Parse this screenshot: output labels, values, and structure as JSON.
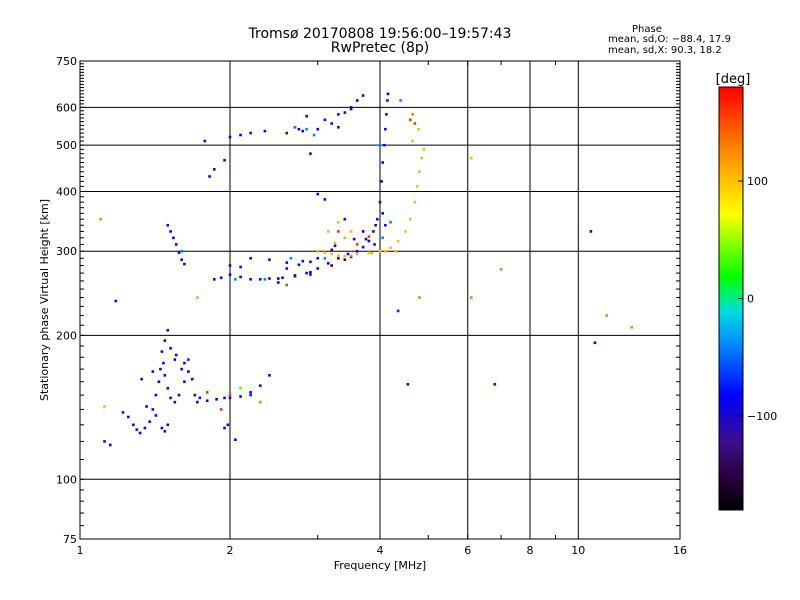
{
  "header": {
    "title_line1": "Tromsø 20170808 19:56:00–19:57:43",
    "title_line2": "RwPretec (8p)",
    "phase_title": "Phase",
    "phase_o": "mean, sd,O: −88.4, 17.9",
    "phase_x": "mean, sd,X:  90.3, 18.2"
  },
  "chart_data": {
    "type": "scatter",
    "xlabel": "Frequency [MHz]",
    "ylabel": "Stationary phase Virtual Height [km]",
    "x_scale": "log",
    "y_scale": "log",
    "xlim": [
      1,
      16
    ],
    "ylim": [
      75,
      750
    ],
    "grid": true,
    "x_ticks": [
      {
        "v": 1,
        "label": "1"
      },
      {
        "v": 2,
        "label": "2"
      },
      {
        "v": 4,
        "label": "4"
      },
      {
        "v": 6,
        "label": "6"
      },
      {
        "v": 8,
        "label": "8"
      },
      {
        "v": 10,
        "label": "10"
      },
      {
        "v": 16,
        "label": "16"
      }
    ],
    "y_ticks": [
      {
        "v": 75,
        "label": "75"
      },
      {
        "v": 100,
        "label": "100"
      },
      {
        "v": 200,
        "label": "200"
      },
      {
        "v": 300,
        "label": "300"
      },
      {
        "v": 400,
        "label": "400"
      },
      {
        "v": 500,
        "label": "500"
      },
      {
        "v": 600,
        "label": "600"
      },
      {
        "v": 750,
        "label": "750"
      }
    ],
    "colorbar": {
      "label": "[deg]",
      "range": [
        -180,
        180
      ],
      "ticks": [
        {
          "v": 100,
          "label": "100"
        },
        {
          "v": 0,
          "label": "0"
        },
        {
          "v": -100,
          "label": "−100"
        }
      ]
    },
    "series": [
      {
        "phase": -90,
        "points": [
          [
            1.12,
            120
          ],
          [
            1.15,
            118
          ],
          [
            1.22,
            138
          ],
          [
            1.25,
            135
          ],
          [
            1.28,
            130
          ],
          [
            1.3,
            127
          ],
          [
            1.32,
            125
          ],
          [
            1.35,
            128
          ],
          [
            1.38,
            132
          ],
          [
            1.4,
            140
          ],
          [
            1.42,
            150
          ],
          [
            1.44,
            160
          ],
          [
            1.45,
            170
          ],
          [
            1.47,
            175
          ],
          [
            1.48,
            165
          ],
          [
            1.5,
            155
          ],
          [
            1.52,
            148
          ],
          [
            1.55,
            145
          ],
          [
            1.58,
            150
          ],
          [
            1.62,
            160
          ],
          [
            1.65,
            168
          ],
          [
            1.68,
            162
          ],
          [
            1.7,
            150
          ],
          [
            1.72,
            145
          ],
          [
            1.74,
            148
          ],
          [
            1.8,
            146
          ],
          [
            1.88,
            147
          ],
          [
            1.95,
            148
          ],
          [
            2.0,
            148
          ],
          [
            2.1,
            149
          ],
          [
            2.2,
            152
          ],
          [
            2.3,
            157
          ],
          [
            2.4,
            165
          ],
          [
            1.46,
            185
          ],
          [
            1.48,
            195
          ],
          [
            1.5,
            205
          ],
          [
            1.52,
            188
          ],
          [
            1.55,
            178
          ],
          [
            1.6,
            170
          ],
          [
            1.46,
            128
          ],
          [
            1.48,
            126
          ],
          [
            1.5,
            130
          ],
          [
            1.42,
            136
          ],
          [
            1.36,
            142
          ],
          [
            1.33,
            162
          ],
          [
            1.4,
            168
          ],
          [
            1.56,
            182
          ],
          [
            1.62,
            175
          ],
          [
            1.18,
            236
          ],
          [
            1.5,
            340
          ],
          [
            1.52,
            330
          ],
          [
            1.54,
            320
          ],
          [
            1.56,
            310
          ],
          [
            1.58,
            298
          ],
          [
            1.6,
            288
          ],
          [
            1.62,
            282
          ],
          [
            1.86,
            262
          ],
          [
            1.92,
            264
          ],
          [
            2.0,
            268
          ],
          [
            2.1,
            265
          ],
          [
            2.2,
            262
          ],
          [
            2.3,
            262
          ],
          [
            2.4,
            263
          ],
          [
            2.55,
            264
          ],
          [
            2.7,
            266
          ],
          [
            2.85,
            270
          ],
          [
            3.0,
            276
          ],
          [
            3.15,
            283
          ],
          [
            3.3,
            290
          ],
          [
            3.45,
            296
          ],
          [
            3.6,
            300
          ],
          [
            3.7,
            306
          ],
          [
            3.8,
            315
          ],
          [
            3.88,
            330
          ],
          [
            3.95,
            350
          ],
          [
            4.0,
            380
          ],
          [
            4.03,
            420
          ],
          [
            4.05,
            460
          ],
          [
            4.08,
            500
          ],
          [
            4.1,
            540
          ],
          [
            4.12,
            580
          ],
          [
            4.14,
            620
          ],
          [
            4.15,
            640
          ],
          [
            2.2,
            290
          ],
          [
            2.4,
            288
          ],
          [
            2.6,
            284
          ],
          [
            2.8,
            286
          ],
          [
            2.9,
            285
          ],
          [
            3.0,
            290
          ],
          [
            3.2,
            302
          ],
          [
            2.0,
            280
          ],
          [
            2.1,
            278
          ],
          [
            1.82,
            430
          ],
          [
            1.86,
            445
          ],
          [
            1.95,
            465
          ],
          [
            2.0,
            520
          ],
          [
            2.1,
            525
          ],
          [
            2.2,
            530
          ],
          [
            2.35,
            535
          ],
          [
            2.6,
            530
          ],
          [
            2.8,
            535
          ],
          [
            3.0,
            540
          ],
          [
            3.2,
            555
          ],
          [
            3.4,
            585
          ],
          [
            3.6,
            620
          ],
          [
            3.7,
            635
          ],
          [
            2.7,
            545
          ],
          [
            2.85,
            575
          ],
          [
            3.1,
            565
          ],
          [
            3.3,
            580
          ],
          [
            3.5,
            600
          ],
          [
            4.05,
            360
          ],
          [
            4.1,
            340
          ],
          [
            3.9,
            310
          ],
          [
            3.7,
            330
          ],
          [
            3.4,
            350
          ],
          [
            2.9,
            480
          ],
          [
            3.1,
            385
          ],
          [
            3.0,
            395
          ],
          [
            1.78,
            510
          ],
          [
            4.55,
            158
          ],
          [
            6.8,
            158
          ],
          [
            10.6,
            330
          ],
          [
            10.8,
            193
          ],
          [
            1.95,
            128
          ],
          [
            1.98,
            130
          ],
          [
            2.05,
            121
          ],
          [
            2.5,
            258
          ],
          [
            2.6,
            276
          ],
          [
            2.75,
            281
          ],
          [
            3.55,
            318
          ],
          [
            3.25,
            308
          ]
        ]
      },
      {
        "phase": -140,
        "points": [
          [
            2.5,
            263
          ],
          [
            2.7,
            267
          ],
          [
            2.9,
            271
          ],
          [
            3.2,
            280
          ],
          [
            3.4,
            288
          ],
          [
            3.5,
            292
          ],
          [
            3.75,
            318
          ],
          [
            3.92,
            340
          ],
          [
            3.3,
            545
          ],
          [
            3.5,
            595
          ],
          [
            2.75,
            540
          ]
        ]
      },
      {
        "phase": -40,
        "points": [
          [
            2.7,
            545
          ],
          [
            2.85,
            540
          ],
          [
            2.95,
            525
          ],
          [
            2.05,
            262
          ],
          [
            2.35,
            262
          ],
          [
            4.0,
            500
          ],
          [
            3.1,
            290
          ],
          [
            2.65,
            290
          ],
          [
            1.6,
            300
          ],
          [
            4.05,
            320
          ],
          [
            4.2,
            345
          ],
          [
            4.4,
            620
          ]
        ]
      },
      {
        "phase": 105,
        "points": [
          [
            3.0,
            300
          ],
          [
            3.1,
            298
          ],
          [
            3.2,
            296
          ],
          [
            3.3,
            294
          ],
          [
            3.4,
            293
          ],
          [
            3.5,
            294
          ],
          [
            3.6,
            296
          ],
          [
            3.8,
            298
          ],
          [
            4.0,
            300
          ],
          [
            4.2,
            305
          ],
          [
            4.35,
            315
          ],
          [
            4.5,
            330
          ],
          [
            4.6,
            350
          ],
          [
            4.7,
            380
          ],
          [
            4.75,
            410
          ],
          [
            4.8,
            440
          ],
          [
            4.85,
            470
          ],
          [
            4.9,
            490
          ],
          [
            3.15,
            330
          ],
          [
            3.3,
            345
          ],
          [
            3.4,
            320
          ],
          [
            3.25,
            312
          ],
          [
            3.5,
            330
          ],
          [
            4.3,
            300
          ],
          [
            4.1,
            300
          ],
          [
            3.85,
            297
          ],
          [
            4.65,
            510
          ],
          [
            4.78,
            540
          ],
          [
            1.12,
            142
          ],
          [
            6.1,
            470
          ]
        ]
      },
      {
        "phase": 160,
        "points": [
          [
            4.6,
            565
          ],
          [
            4.7,
            555
          ],
          [
            3.6,
            310
          ],
          [
            3.8,
            322
          ],
          [
            2.6,
            255
          ],
          [
            2.0,
            150
          ],
          [
            1.8,
            152
          ],
          [
            1.92,
            140
          ],
          [
            3.3,
            330
          ]
        ]
      },
      {
        "phase": 130,
        "points": [
          [
            2.3,
            145
          ],
          [
            4.8,
            240
          ],
          [
            6.1,
            240
          ],
          [
            7.0,
            275
          ],
          [
            11.4,
            220
          ],
          [
            12.8,
            208
          ],
          [
            1.1,
            350
          ],
          [
            4.65,
            580
          ]
        ]
      },
      {
        "phase": 35,
        "points": [
          [
            1.72,
            240
          ],
          [
            2.1,
            155
          ]
        ]
      },
      {
        "phase": -70,
        "points": [
          [
            4.35,
            225
          ],
          [
            2.2,
            150
          ],
          [
            1.65,
            178
          ],
          [
            2.9,
            268
          ]
        ]
      }
    ]
  }
}
